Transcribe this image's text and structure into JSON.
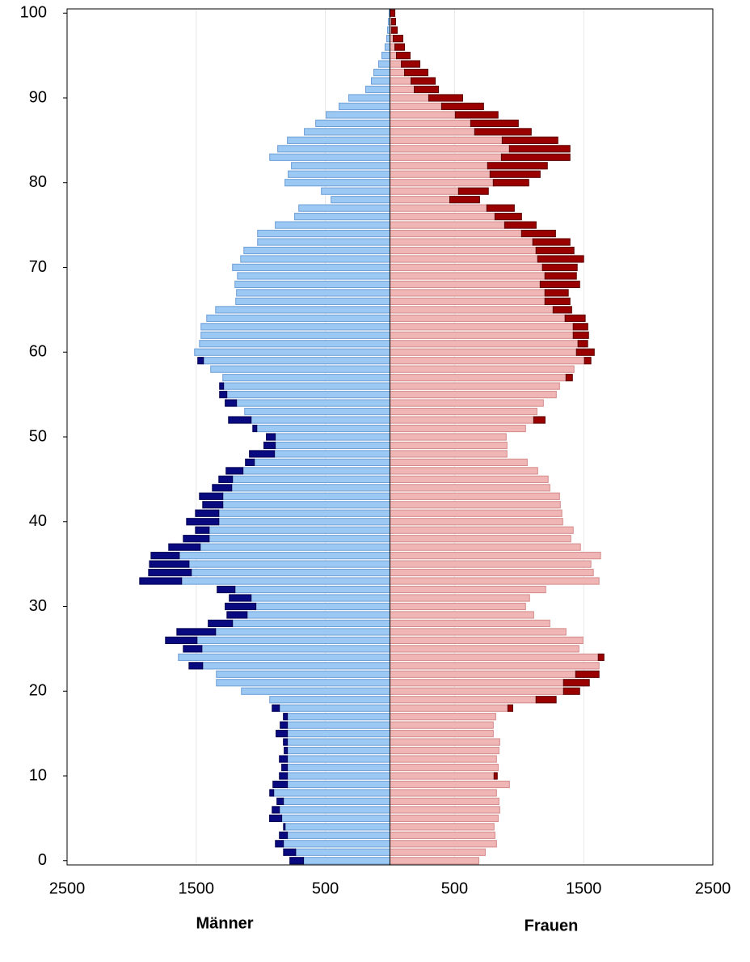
{
  "chart_data": {
    "type": "pyramid",
    "ages": [
      0,
      1,
      2,
      3,
      4,
      5,
      6,
      7,
      8,
      9,
      10,
      11,
      12,
      13,
      14,
      15,
      16,
      17,
      18,
      19,
      20,
      21,
      22,
      23,
      24,
      25,
      26,
      27,
      28,
      29,
      30,
      31,
      32,
      33,
      34,
      35,
      36,
      37,
      38,
      39,
      40,
      41,
      42,
      43,
      44,
      45,
      46,
      47,
      48,
      49,
      50,
      51,
      52,
      53,
      54,
      55,
      56,
      57,
      58,
      59,
      60,
      61,
      62,
      63,
      64,
      65,
      66,
      67,
      68,
      69,
      70,
      71,
      72,
      73,
      74,
      75,
      76,
      77,
      78,
      79,
      80,
      81,
      82,
      83,
      84,
      85,
      86,
      87,
      88,
      89,
      90,
      91,
      92,
      93,
      94,
      95,
      96,
      97,
      98,
      99,
      100
    ],
    "xlim": [
      -2500,
      2500
    ],
    "xticks": [
      {
        "value": -2500,
        "label": "2500"
      },
      {
        "value": -1500,
        "label": "1500"
      },
      {
        "value": -500,
        "label": "500"
      },
      500,
      1500,
      2500
    ],
    "ylim": [
      -0.5,
      100.5
    ],
    "yticks": [
      0,
      10,
      20,
      30,
      40,
      50,
      60,
      70,
      80,
      90,
      100
    ],
    "grid": true,
    "series": [
      {
        "name": "Männer",
        "side": "left",
        "color": "#9cc8f4",
        "border": "#6e9fd6",
        "values": [
          669,
          730,
          825,
          794,
          812,
          838,
          856,
          825,
          900,
          794,
          794,
          794,
          794,
          794,
          794,
          794,
          794,
          794,
          856,
          931,
          1150,
          1344,
          1344,
          1450,
          1638,
          1456,
          1494,
          1350,
          1219,
          1106,
          1038,
          1075,
          1200,
          1613,
          1538,
          1556,
          1631,
          1469,
          1400,
          1400,
          1325,
          1325,
          1294,
          1294,
          1225,
          1219,
          1138,
          1050,
          894,
          888,
          888,
          1031,
          1075,
          1125,
          1188,
          1263,
          1288,
          1294,
          1388,
          1444,
          1513,
          1475,
          1463,
          1463,
          1419,
          1350,
          1194,
          1188,
          1200,
          1181,
          1219,
          1156,
          1131,
          1025,
          1025,
          888,
          738,
          706,
          456,
          531,
          813,
          788,
          763,
          931,
          869,
          794,
          663,
          575,
          494,
          394,
          319,
          188,
          144,
          125,
          88,
          63,
          38,
          25,
          19,
          13,
          6
        ],
        "excess": {
          "color": "#0a0a80",
          "border": "#000050",
          "values": [
            106,
            94,
            62,
            62,
            12,
            94,
            56,
            50,
            31,
            112,
            62,
            44,
            62,
            25,
            31,
            88,
            56,
            31,
            56,
            0,
            0,
            0,
            0,
            106,
            0,
            144,
            244,
            300,
            188,
            156,
            238,
            169,
            138,
            325,
            331,
            306,
            219,
            244,
            200,
            106,
            250,
            181,
            156,
            181,
            150,
            106,
            131,
            69,
            194,
            88,
            69,
            31,
            175,
            0,
            88,
            56,
            31,
            0,
            0,
            44,
            0,
            0,
            0,
            0,
            0,
            0,
            0,
            0,
            0,
            0,
            0,
            0,
            0,
            0,
            0,
            0,
            0,
            0,
            0,
            0,
            0,
            0,
            0,
            0,
            0,
            0,
            0,
            0,
            0,
            0,
            0,
            0,
            0,
            0,
            0,
            0,
            0,
            0,
            0,
            0,
            0
          ]
        }
      },
      {
        "name": "Frauen",
        "side": "right",
        "color": "#f0b6b6",
        "border": "#d48a8a",
        "values": [
          688,
          738,
          825,
          813,
          806,
          838,
          850,
          844,
          825,
          925,
          806,
          838,
          825,
          844,
          850,
          800,
          800,
          819,
          913,
          1131,
          1344,
          1344,
          1438,
          1619,
          1613,
          1463,
          1494,
          1363,
          1238,
          1113,
          1050,
          1081,
          1206,
          1619,
          1575,
          1556,
          1631,
          1475,
          1400,
          1419,
          1338,
          1331,
          1319,
          1313,
          1238,
          1225,
          1144,
          1063,
          906,
          906,
          900,
          1050,
          1113,
          1138,
          1188,
          1288,
          1313,
          1363,
          1425,
          1506,
          1444,
          1456,
          1419,
          1419,
          1356,
          1263,
          1200,
          1200,
          1163,
          1200,
          1181,
          1144,
          1131,
          1106,
          1019,
          888,
          813,
          750,
          463,
          531,
          800,
          775,
          756,
          863,
          925,
          869,
          656,
          625,
          506,
          400,
          300,
          188,
          163,
          113,
          88,
          50,
          38,
          25,
          13,
          13,
          0
        ],
        "excess": {
          "color": "#9a0000",
          "border": "#5a0000",
          "values": [
            0,
            0,
            0,
            0,
            0,
            0,
            0,
            0,
            0,
            0,
            25,
            0,
            0,
            0,
            0,
            0,
            0,
            0,
            38,
            156,
            125,
            200,
            181,
            0,
            44,
            0,
            0,
            0,
            0,
            0,
            0,
            0,
            0,
            0,
            0,
            0,
            0,
            0,
            0,
            0,
            0,
            0,
            0,
            0,
            0,
            0,
            0,
            0,
            0,
            0,
            0,
            0,
            88,
            0,
            0,
            0,
            0,
            50,
            0,
            50,
            138,
            75,
            119,
            113,
            156,
            144,
            194,
            181,
            306,
            244,
            269,
            356,
            294,
            288,
            263,
            244,
            206,
            213,
            231,
            231,
            275,
            388,
            463,
            531,
            469,
            431,
            438,
            369,
            331,
            325,
            263,
            188,
            188,
            181,
            144,
            106,
            75,
            75,
            44,
            31,
            38
          ]
        }
      }
    ]
  }
}
